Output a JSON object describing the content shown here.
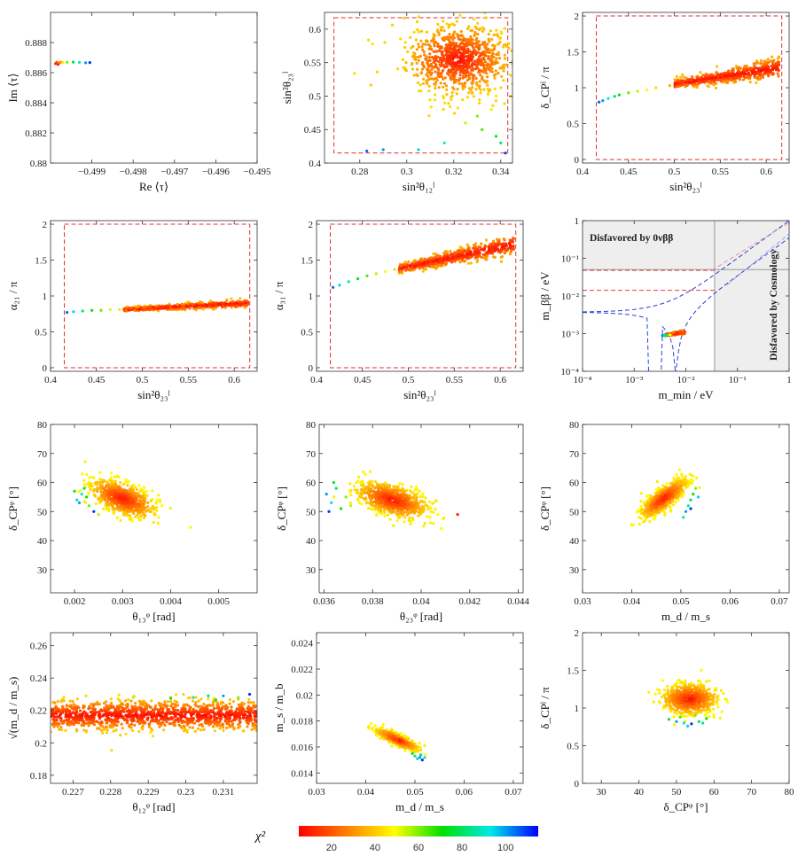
{
  "colorbar": {
    "label": "χ²",
    "min": 5,
    "max": 115,
    "ticks": [
      20,
      40,
      60,
      80,
      100
    ],
    "colors": [
      "#ff0000",
      "#ff7f00",
      "#ffff00",
      "#00e000",
      "#00e8e8",
      "#0000ff"
    ]
  },
  "chart_data": [
    {
      "id": "p1",
      "type": "scatter",
      "xlabel": "Re ⟨τ⟩",
      "ylabel": "Im ⟨τ⟩",
      "xlim": [
        -0.5,
        -0.495
      ],
      "ylim": [
        0.88,
        0.89
      ],
      "xticks": [
        -0.499,
        -0.498,
        -0.497,
        -0.496,
        -0.495
      ],
      "yticks": [
        0.88,
        0.882,
        0.884,
        0.886,
        0.888
      ],
      "clusters": [
        {
          "pts": [
            [
              -0.49988,
              0.8866,
              12
            ],
            [
              -0.49985,
              0.88668,
              18
            ],
            [
              -0.49982,
              0.88655,
              10
            ],
            [
              -0.49978,
              0.88665,
              25
            ],
            [
              -0.49975,
              0.8867,
              30
            ],
            [
              -0.4997,
              0.88667,
              45
            ],
            [
              -0.4996,
              0.88668,
              60
            ],
            [
              -0.49945,
              0.8867,
              75
            ],
            [
              -0.4993,
              0.88668,
              90
            ],
            [
              -0.49915,
              0.88665,
              100
            ],
            [
              -0.49905,
              0.88667,
              110
            ]
          ],
          "n": 0,
          "sx": 0,
          "sy": 0,
          "c0": 10,
          "c1": 10
        }
      ]
    },
    {
      "id": "p2",
      "type": "scatter",
      "xlabel": "sin²θ₁₂ˡ",
      "ylabel": "sin²θ₂₃ˡ",
      "xlim": [
        0.265,
        0.345
      ],
      "ylim": [
        0.4,
        0.625
      ],
      "xticks": [
        0.28,
        0.3,
        0.32,
        0.34
      ],
      "yticks": [
        0.4,
        0.45,
        0.5,
        0.55,
        0.6
      ],
      "dashed_box": [
        0.269,
        0.343,
        0.415,
        0.617
      ],
      "clusters": [
        {
          "pts": [],
          "n": 900,
          "cx": 0.322,
          "cy": 0.555,
          "sx": 0.011,
          "sy": 0.025,
          "c0": 5,
          "c1": 40
        },
        {
          "pts": [
            [
              0.325,
              0.46,
              55
            ],
            [
              0.332,
              0.45,
              65
            ],
            [
              0.338,
              0.44,
              70
            ],
            [
              0.34,
              0.43,
              80
            ],
            [
              0.33,
              0.47,
              60
            ],
            [
              0.305,
              0.42,
              95
            ],
            [
              0.29,
              0.42,
              100
            ],
            [
              0.283,
              0.418,
              105
            ],
            [
              0.316,
              0.43,
              90
            ],
            [
              0.342,
              0.415,
              110
            ],
            [
              0.336,
              0.48,
              52
            ],
            [
              0.338,
              0.5,
              45
            ]
          ],
          "n": 0,
          "sx": 0,
          "sy": 0,
          "c0": 50,
          "c1": 50
        }
      ]
    },
    {
      "id": "p3",
      "type": "scatter",
      "xlabel": "sin²θ₂₃ˡ",
      "ylabel": "δ_CPˡ / π",
      "xlim": [
        0.4,
        0.625
      ],
      "ylim": [
        -0.05,
        2.05
      ],
      "xticks": [
        0.4,
        0.45,
        0.5,
        0.55,
        0.6
      ],
      "yticks": [
        0,
        0.5,
        1,
        1.5,
        2
      ],
      "dashed_box": [
        0.415,
        0.617,
        0.0,
        2.0
      ],
      "clusters": [
        {
          "pts": [
            [
              0.418,
              0.8,
              105
            ],
            [
              0.422,
              0.82,
              100
            ],
            [
              0.428,
              0.85,
              90
            ],
            [
              0.435,
              0.88,
              80
            ],
            [
              0.44,
              0.9,
              72
            ],
            [
              0.45,
              0.93,
              62
            ],
            [
              0.46,
              0.95,
              55
            ],
            [
              0.47,
              0.97,
              48
            ],
            [
              0.48,
              1.0,
              42
            ],
            [
              0.495,
              1.03,
              35
            ]
          ],
          "n": 0,
          "sx": 0,
          "sy": 0,
          "c0": 50,
          "c1": 50
        },
        {
          "pts": [],
          "n": 500,
          "line": [
            0.5,
            1.05,
            0.615,
            1.28
          ],
          "sx": 0.0,
          "sy": 0.05,
          "c0": 5,
          "c1": 35
        }
      ]
    },
    {
      "id": "p4",
      "type": "scatter",
      "xlabel": "sin²θ₂₃ˡ",
      "ylabel": "α₂₁ / π",
      "xlim": [
        0.4,
        0.625
      ],
      "ylim": [
        -0.05,
        2.05
      ],
      "xticks": [
        0.4,
        0.45,
        0.5,
        0.55,
        0.6
      ],
      "yticks": [
        0,
        0.5,
        1,
        1.5,
        2
      ],
      "dashed_box": [
        0.415,
        0.617,
        0.0,
        2.0
      ],
      "clusters": [
        {
          "pts": [
            [
              0.418,
              0.77,
              105
            ],
            [
              0.425,
              0.78,
              95
            ],
            [
              0.435,
              0.79,
              82
            ],
            [
              0.445,
              0.8,
              72
            ],
            [
              0.455,
              0.8,
              62
            ],
            [
              0.465,
              0.81,
              52
            ],
            [
              0.475,
              0.81,
              44
            ]
          ],
          "n": 0,
          "sx": 0,
          "sy": 0,
          "c0": 50,
          "c1": 50
        },
        {
          "pts": [],
          "n": 500,
          "line": [
            0.48,
            0.81,
            0.615,
            0.9
          ],
          "sx": 0.0,
          "sy": 0.02,
          "c0": 5,
          "c1": 35
        }
      ]
    },
    {
      "id": "p5",
      "type": "scatter",
      "xlabel": "sin²θ₂₃ˡ",
      "ylabel": "α₃₁ / π",
      "xlim": [
        0.4,
        0.625
      ],
      "ylim": [
        -0.05,
        2.05
      ],
      "xticks": [
        0.4,
        0.45,
        0.5,
        0.55,
        0.6
      ],
      "yticks": [
        0,
        0.5,
        1,
        1.5,
        2
      ],
      "dashed_box": [
        0.415,
        0.617,
        0.0,
        2.0
      ],
      "clusters": [
        {
          "pts": [
            [
              0.418,
              1.12,
              105
            ],
            [
              0.425,
              1.15,
              95
            ],
            [
              0.435,
              1.2,
              85
            ],
            [
              0.445,
              1.24,
              75
            ],
            [
              0.455,
              1.28,
              65
            ],
            [
              0.465,
              1.31,
              55
            ],
            [
              0.475,
              1.34,
              48
            ],
            [
              0.485,
              1.37,
              42
            ]
          ],
          "n": 0,
          "sx": 0,
          "sy": 0,
          "c0": 50,
          "c1": 50
        },
        {
          "pts": [],
          "n": 550,
          "line": [
            0.49,
            1.38,
            0.615,
            1.72
          ],
          "sx": 0.0,
          "sy": 0.05,
          "c0": 5,
          "c1": 35
        }
      ]
    },
    {
      "id": "p6",
      "type": "scatter_loglog",
      "xlabel": "m_min / eV",
      "ylabel": "m_ββ / eV",
      "xlim": [
        -4,
        0
      ],
      "ylim": [
        -4,
        0
      ],
      "xticks": [
        -4,
        -3,
        -2,
        -1,
        0
      ],
      "yticks": [
        -4,
        -3,
        -2,
        -1,
        0
      ],
      "tick_labels": [
        "10⁻⁴",
        "10⁻³",
        "10⁻²",
        "10⁻¹",
        "1"
      ],
      "text_top": "Disfavored by 0νββ",
      "text_right": "Disfavored by Cosmology",
      "limits": {
        "mbb": 0.05,
        "mmin": 0.036
      },
      "clusters": [
        {
          "pts": [],
          "n": 160,
          "line": [
            -2.4,
            -3.04,
            -2.02,
            -2.96
          ],
          "sx": 0.0,
          "sy": 0.02,
          "c0": 5,
          "c1": 30
        },
        {
          "pts": [
            [
              -2.45,
              -3.05,
              105
            ],
            [
              -2.42,
              -3.04,
              95
            ],
            [
              -2.4,
              -3.06,
              85
            ],
            [
              -2.37,
              -3.04,
              75
            ],
            [
              -2.34,
              -3.03,
              62
            ],
            [
              -2.3,
              -3.03,
              50
            ]
          ],
          "n": 0,
          "sx": 0,
          "sy": 0,
          "c0": 50,
          "c1": 50
        }
      ]
    },
    {
      "id": "p7",
      "type": "scatter",
      "xlabel": "θ₁₃ᵠ [rad]",
      "ylabel": "δ_CPᵠ [°]",
      "xlim": [
        0.0015,
        0.0058
      ],
      "ylim": [
        22,
        80
      ],
      "xticks": [
        0.002,
        0.003,
        0.004,
        0.005
      ],
      "yticks": [
        30,
        40,
        50,
        60,
        70,
        80
      ],
      "clusters": [
        {
          "pts": [],
          "n": 700,
          "ellipse": [
            0.003,
            54.5,
            0.00033,
            3.2,
            -0.55
          ],
          "c0": 5,
          "c1": 45
        },
        {
          "pts": [
            [
              0.0021,
              53,
              100
            ],
            [
              0.00215,
              56,
              90
            ],
            [
              0.0022,
              58,
              80
            ],
            [
              0.00225,
              55,
              70
            ],
            [
              0.0023,
              52,
              60
            ],
            [
              0.0024,
              50,
              110
            ],
            [
              0.002,
              57,
              75
            ],
            [
              0.0025,
              49,
              55
            ],
            [
              0.00205,
              54,
              95
            ]
          ],
          "n": 0,
          "sx": 0,
          "sy": 0,
          "c0": 50,
          "c1": 50
        }
      ]
    },
    {
      "id": "p8",
      "type": "scatter",
      "xlabel": "θ₂₃ᵠ [rad]",
      "ylabel": "δ_CPᵠ [°]",
      "xlim": [
        0.0358,
        0.0442
      ],
      "ylim": [
        22,
        80
      ],
      "xticks": [
        0.036,
        0.038,
        0.04,
        0.042,
        0.044
      ],
      "yticks": [
        30,
        40,
        50,
        60,
        70,
        80
      ],
      "clusters": [
        {
          "pts": [],
          "n": 750,
          "ellipse": [
            0.0388,
            54,
            0.00072,
            3.0,
            -0.5
          ],
          "c0": 5,
          "c1": 45
        },
        {
          "pts": [
            [
              0.0361,
              56,
              100
            ],
            [
              0.0363,
              53,
              90
            ],
            [
              0.0365,
              58,
              80
            ],
            [
              0.0367,
              51,
              70
            ],
            [
              0.0369,
              55,
              60
            ],
            [
              0.0362,
              50,
              110
            ],
            [
              0.0364,
              60,
              75
            ],
            [
              0.0415,
              49,
              10
            ],
            [
              0.0371,
              52,
              55
            ]
          ],
          "n": 0,
          "sx": 0,
          "sy": 0,
          "c0": 50,
          "c1": 50
        }
      ]
    },
    {
      "id": "p9",
      "type": "scatter",
      "xlabel": "m_d / m_s",
      "ylabel": "δ_CPᵠ [°]",
      "xlim": [
        0.03,
        0.072
      ],
      "ylim": [
        22,
        80
      ],
      "xticks": [
        0.03,
        0.04,
        0.05,
        0.06,
        0.07
      ],
      "yticks": [
        30,
        40,
        50,
        60,
        70,
        80
      ],
      "clusters": [
        {
          "pts": [],
          "n": 650,
          "ellipse": [
            0.0465,
            54.5,
            0.0023,
            3.2,
            0.8
          ],
          "c0": 5,
          "c1": 45
        },
        {
          "pts": [
            [
              0.051,
              50,
              100
            ],
            [
              0.0515,
              52,
              90
            ],
            [
              0.052,
              54,
              80
            ],
            [
              0.0525,
              56,
              70
            ],
            [
              0.0505,
              48,
              85
            ],
            [
              0.053,
              58,
              60
            ],
            [
              0.052,
              51,
              110
            ],
            [
              0.0535,
              55,
              95
            ]
          ],
          "n": 0,
          "sx": 0,
          "sy": 0,
          "c0": 50,
          "c1": 50
        }
      ]
    },
    {
      "id": "p10",
      "type": "scatter",
      "xlabel": "θ₁₂ᵠ [rad]",
      "ylabel": "√(m_d / m_s)",
      "xlim": [
        0.2264,
        0.2319
      ],
      "ylim": [
        0.175,
        0.268
      ],
      "xticks": [
        0.227,
        0.228,
        0.229,
        0.23,
        0.231
      ],
      "yticks": [
        0.18,
        0.2,
        0.22,
        0.24,
        0.26
      ],
      "clusters": [
        {
          "pts": [],
          "n": 1200,
          "band": [
            0.2264,
            0.2319,
            0.217,
            0.0045
          ],
          "c0": 5,
          "c1": 40
        },
        {
          "pts": [
            [
              0.2302,
              0.228,
              90
            ],
            [
              0.2306,
              0.229,
              80
            ],
            [
              0.231,
              0.229,
              100
            ],
            [
              0.2296,
              0.2275,
              70
            ],
            [
              0.2314,
              0.228,
              60
            ],
            [
              0.2317,
              0.23,
              110
            ],
            [
              0.2286,
              0.228,
              55
            ],
            [
              0.2308,
              0.2265,
              75
            ]
          ],
          "n": 0,
          "sx": 0,
          "sy": 0,
          "c0": 50,
          "c1": 50
        }
      ]
    },
    {
      "id": "p11",
      "type": "scatter",
      "xlabel": "m_d / m_s",
      "ylabel": "m_s / m_b",
      "xlim": [
        0.03,
        0.072
      ],
      "ylim": [
        0.0132,
        0.0248
      ],
      "xticks": [
        0.03,
        0.04,
        0.05,
        0.06,
        0.07
      ],
      "yticks": [
        0.014,
        0.016,
        0.018,
        0.02,
        0.022,
        0.024
      ],
      "clusters": [
        {
          "pts": [],
          "n": 400,
          "ellipse": [
            0.0465,
            0.01655,
            0.0022,
            0.00042,
            -0.85
          ],
          "c0": 5,
          "c1": 45
        },
        {
          "pts": [
            [
              0.05,
              0.0153,
              85
            ],
            [
              0.0505,
              0.0151,
              95
            ],
            [
              0.051,
              0.0152,
              100
            ],
            [
              0.0515,
              0.015,
              110
            ],
            [
              0.052,
              0.0152,
              90
            ],
            [
              0.0495,
              0.0155,
              70
            ],
            [
              0.0512,
              0.0154,
              80
            ]
          ],
          "n": 0,
          "sx": 0,
          "sy": 0,
          "c0": 50,
          "c1": 50
        }
      ]
    },
    {
      "id": "p12",
      "type": "scatter",
      "xlabel": "δ_CPᵠ [°]",
      "ylabel": "δ_CPˡ / π",
      "xlim": [
        25,
        80
      ],
      "ylim": [
        0,
        2
      ],
      "xticks": [
        30,
        40,
        50,
        60,
        70,
        80
      ],
      "yticks": [
        0,
        0.5,
        1,
        1.5,
        2
      ],
      "clusters": [
        {
          "pts": [],
          "n": 650,
          "ellipse": [
            53.5,
            1.12,
            3.6,
            0.1,
            0.0
          ],
          "c0": 5,
          "c1": 45
        },
        {
          "pts": [
            [
              50,
              0.82,
              100
            ],
            [
              52,
              0.8,
              90
            ],
            [
              54,
              0.79,
              110
            ],
            [
              56,
              0.82,
              80
            ],
            [
              48,
              0.85,
              75
            ],
            [
              58,
              0.86,
              70
            ],
            [
              53,
              0.76,
              95
            ],
            [
              51,
              0.88,
              65
            ],
            [
              55,
              0.9,
              60
            ],
            [
              57,
              0.8,
              85
            ]
          ],
          "n": 0,
          "sx": 0,
          "sy": 0,
          "c0": 50,
          "c1": 50
        }
      ]
    }
  ]
}
